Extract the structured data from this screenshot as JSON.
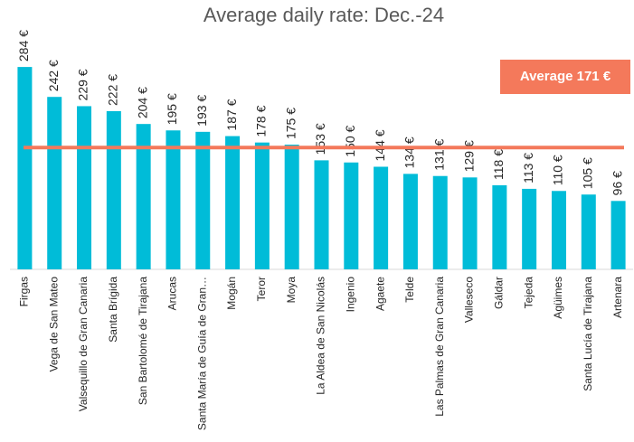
{
  "chart_data": {
    "type": "bar",
    "title": "Average daily rate: Dec.-24",
    "categories": [
      "Firgas",
      "Vega de San Mateo",
      "Valsequillo de Gran Canaria",
      "Santa Brígida",
      "San Bartolomé de Tirajana",
      "Arucas",
      "Santa María de Guía de Gran…",
      "Mogán",
      "Teror",
      "Moya",
      "La Aldea de San Nicolás",
      "Ingenio",
      "Agaete",
      "Telde",
      "Las Palmas de Gran Canaria",
      "Valleseco",
      "Gáldar",
      "Tejeda",
      "Agüimes",
      "Santa Lucía de Tirajana",
      "Artenara"
    ],
    "values": [
      284,
      242,
      229,
      222,
      204,
      195,
      193,
      187,
      178,
      175,
      153,
      150,
      144,
      134,
      131,
      129,
      118,
      113,
      110,
      105,
      96
    ],
    "value_labels": [
      "284 €",
      "242 €",
      "229 €",
      "222 €",
      "204 €",
      "195 €",
      "193 €",
      "187 €",
      "178 €",
      "175 €",
      "153 €",
      "150 €",
      "144 €",
      "134 €",
      "131 €",
      "129 €",
      "118 €",
      "113 €",
      "110 €",
      "105 €",
      "96 €"
    ],
    "color": "#00bcd8",
    "ylim": [
      0,
      378
    ],
    "average": {
      "value": 171,
      "label": "Average 171 €",
      "color": "#f4795b"
    }
  }
}
